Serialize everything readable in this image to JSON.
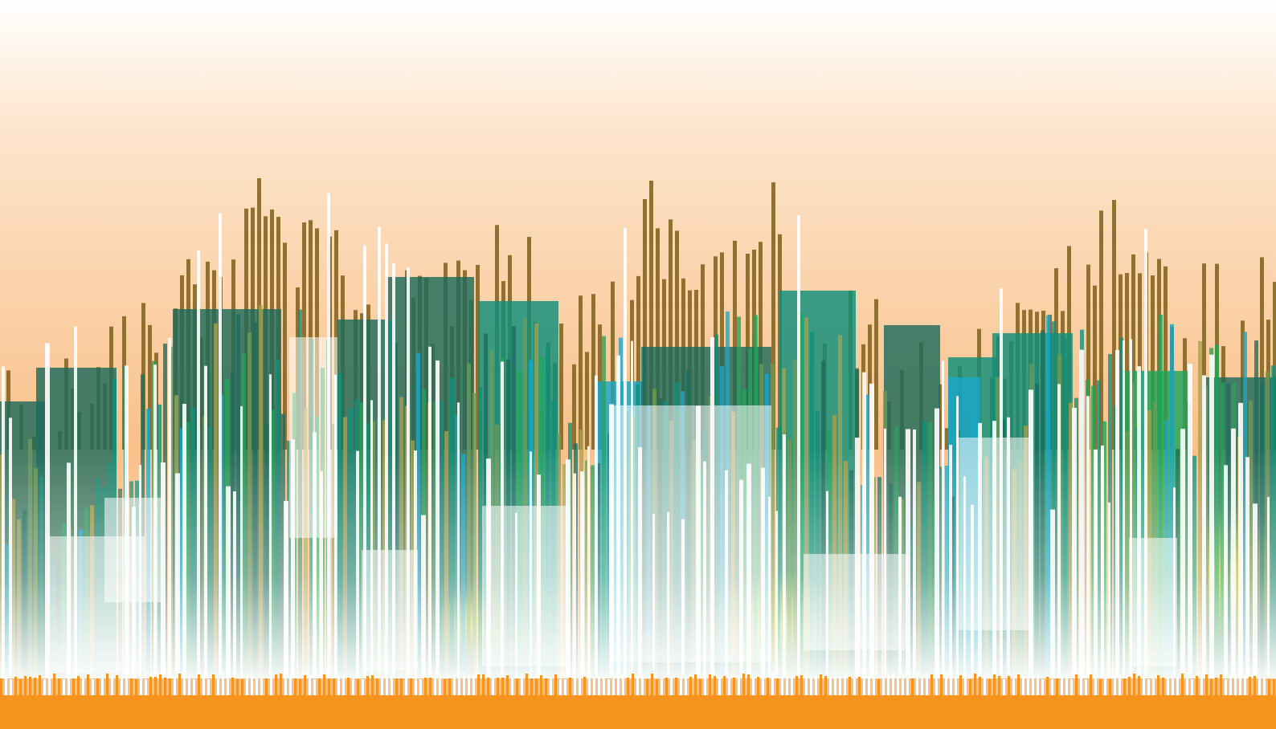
{
  "artwork": {
    "subject": "abstract-city-skyline-barcode",
    "colors": {
      "sky_top": "#ffffff",
      "sky_mid": "#fde5cc",
      "sky_bottom": "#f9c089",
      "ground": "#f7941d",
      "spire_brown": "#8b6a2b",
      "teal_dark": "#1e6b5c",
      "teal": "#0f8f7a",
      "green": "#1fa55a",
      "cyan": "#1aa6c8",
      "sage": "#6e9a55",
      "olive": "#a8a24a",
      "yellow": "#f2e31a",
      "white": "#ffffff"
    }
  }
}
